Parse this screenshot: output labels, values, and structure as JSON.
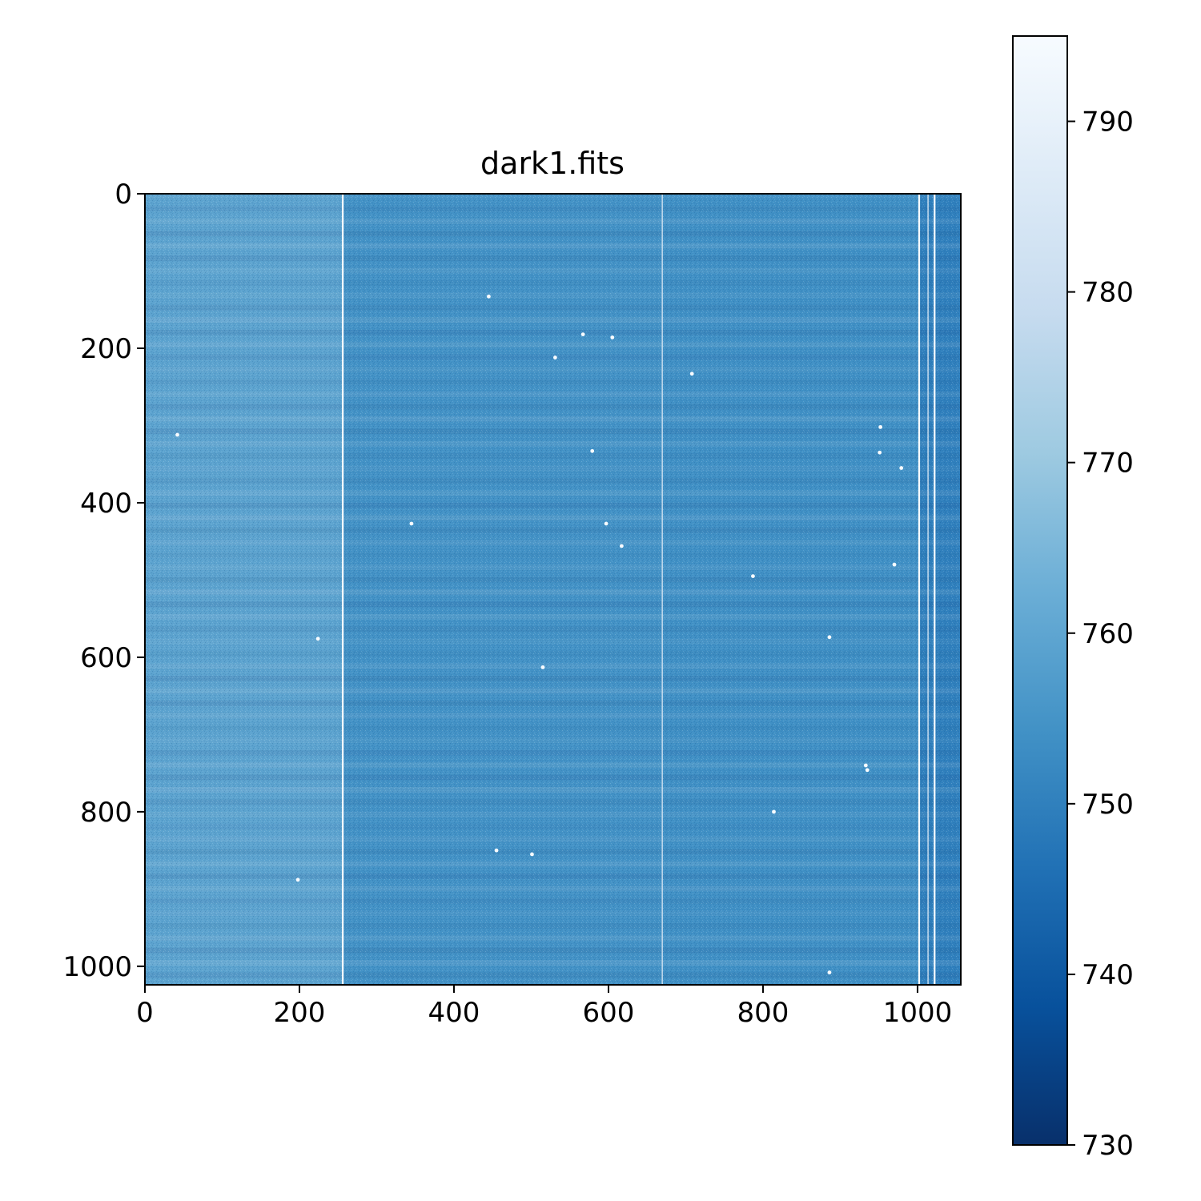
{
  "chart_data": {
    "type": "heatmap",
    "title": "dark1.fits",
    "colormap": "Blues_r",
    "image_shape": [
      1024,
      1056
    ],
    "xlim": [
      0,
      1056
    ],
    "ylim": [
      1024,
      0
    ],
    "x_ticks": [
      0,
      200,
      400,
      600,
      800,
      1000
    ],
    "y_ticks": [
      0,
      200,
      400,
      600,
      800,
      1000
    ],
    "x_tick_labels": [
      "0",
      "200",
      "400",
      "600",
      "800",
      "1000"
    ],
    "y_tick_labels": [
      "0",
      "200",
      "400",
      "600",
      "800",
      "1000"
    ],
    "colorbar": {
      "vmin": 730,
      "vmax": 795,
      "ticks": [
        730,
        740,
        750,
        760,
        770,
        780,
        790
      ],
      "tick_labels": [
        "730",
        "740",
        "750",
        "760",
        "770",
        "780",
        "790"
      ]
    },
    "background": {
      "left_region_level": 759,
      "right_region_level": 754,
      "far_right_region_level": 750
    },
    "bad_columns": [
      {
        "x": 256,
        "value": 800
      },
      {
        "x": 670,
        "value": 790
      },
      {
        "x": 1002,
        "value": 800
      },
      {
        "x": 1014,
        "value": 790
      },
      {
        "x": 1022,
        "value": 800
      }
    ],
    "hot_pixels": [
      {
        "x": 42,
        "y": 312
      },
      {
        "x": 224,
        "y": 576
      },
      {
        "x": 198,
        "y": 888
      },
      {
        "x": 445,
        "y": 133
      },
      {
        "x": 567,
        "y": 182
      },
      {
        "x": 605,
        "y": 186
      },
      {
        "x": 531,
        "y": 212
      },
      {
        "x": 708,
        "y": 233
      },
      {
        "x": 579,
        "y": 333
      },
      {
        "x": 345,
        "y": 427
      },
      {
        "x": 597,
        "y": 427
      },
      {
        "x": 617,
        "y": 456
      },
      {
        "x": 787,
        "y": 495
      },
      {
        "x": 951,
        "y": 335
      },
      {
        "x": 952,
        "y": 302
      },
      {
        "x": 979,
        "y": 355
      },
      {
        "x": 970,
        "y": 480
      },
      {
        "x": 886,
        "y": 574
      },
      {
        "x": 515,
        "y": 613
      },
      {
        "x": 933,
        "y": 740
      },
      {
        "x": 935,
        "y": 746
      },
      {
        "x": 814,
        "y": 800
      },
      {
        "x": 455,
        "y": 850
      },
      {
        "x": 501,
        "y": 855
      },
      {
        "x": 886,
        "y": 1008
      }
    ]
  }
}
